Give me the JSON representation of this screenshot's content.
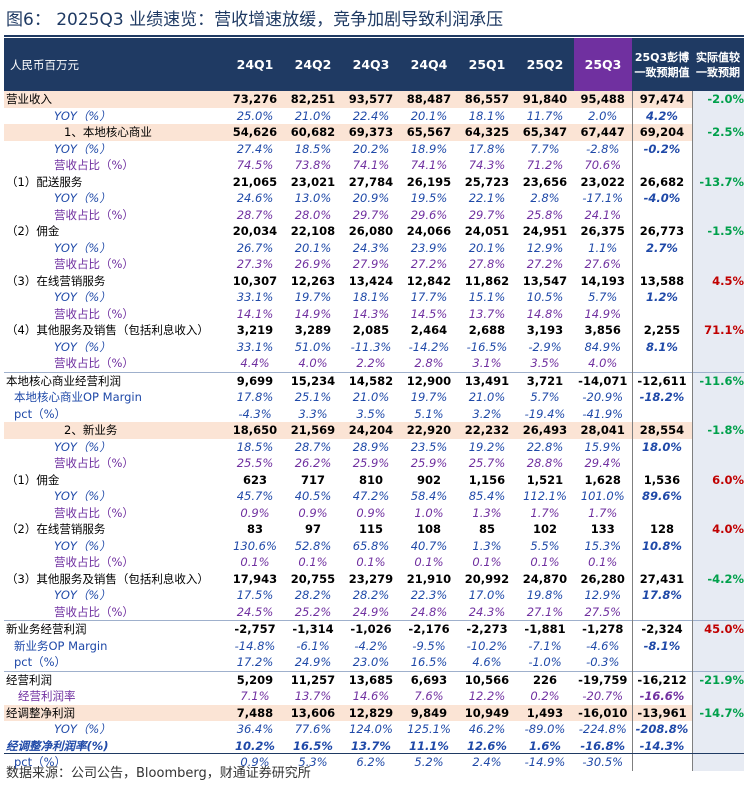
{
  "title": "图6： 2025Q3 业绩速览：营收增速放缓，竞争加剧导致利润承压",
  "header": {
    "label": "人民币百万元",
    "quarters": [
      "24Q1",
      "24Q2",
      "24Q3",
      "24Q4",
      "25Q1",
      "25Q2",
      "25Q3"
    ],
    "estimate": "25Q3彭博一致预期值",
    "actual_vs": "实际值较一致预期"
  },
  "colors": {
    "header_bg": "#1f3a63",
    "highlight_bg": "#7030a0",
    "band_bg": "#fbe4d5",
    "positive": "#00a04b",
    "negative": "#c00000"
  },
  "rows": [
    {
      "type": "main",
      "label": "营业收入",
      "vals": [
        "73,276",
        "82,251",
        "93,577",
        "88,487",
        "86,557",
        "91,840",
        "95,488"
      ],
      "est": "97,474",
      "chg": "-2.0%",
      "chg_color": "grn",
      "band": true
    },
    {
      "type": "yoy",
      "label": "YOY（%）",
      "vals": [
        "25.0%",
        "21.0%",
        "22.4%",
        "20.1%",
        "18.1%",
        "11.7%",
        "2.0%"
      ],
      "est": "4.2%",
      "chg": ""
    },
    {
      "type": "main",
      "label": "1、本地核心商业",
      "vals": [
        "54,626",
        "60,682",
        "69,373",
        "65,567",
        "64,325",
        "65,347",
        "67,447"
      ],
      "est": "69,204",
      "chg": "-2.5%",
      "chg_color": "grn",
      "band": true,
      "indent": true
    },
    {
      "type": "yoy",
      "label": "YOY（%）",
      "vals": [
        "27.4%",
        "18.5%",
        "20.2%",
        "18.9%",
        "17.8%",
        "7.7%",
        "-2.8%"
      ],
      "est": "-0.2%",
      "chg": ""
    },
    {
      "type": "share",
      "label": "营收占比（%）",
      "vals": [
        "74.5%",
        "73.8%",
        "74.1%",
        "74.1%",
        "74.3%",
        "71.2%",
        "70.6%"
      ],
      "est": "",
      "chg": ""
    },
    {
      "type": "main",
      "label": "（1）配送服务",
      "vals": [
        "21,065",
        "23,021",
        "27,784",
        "26,195",
        "25,723",
        "23,656",
        "23,022"
      ],
      "est": "26,682",
      "chg": "-13.7%",
      "chg_color": "grn"
    },
    {
      "type": "yoy",
      "label": "YOY（%）",
      "vals": [
        "24.6%",
        "13.0%",
        "20.9%",
        "19.5%",
        "22.1%",
        "2.8%",
        "-17.1%"
      ],
      "est": "-4.0%",
      "chg": ""
    },
    {
      "type": "share",
      "label": "营收占比（%）",
      "vals": [
        "28.7%",
        "28.0%",
        "29.7%",
        "29.6%",
        "29.7%",
        "25.8%",
        "24.1%"
      ],
      "est": "",
      "chg": ""
    },
    {
      "type": "main",
      "label": "（2）佣金",
      "vals": [
        "20,034",
        "22,108",
        "26,080",
        "24,066",
        "24,051",
        "24,951",
        "26,375"
      ],
      "est": "26,773",
      "chg": "-1.5%",
      "chg_color": "grn"
    },
    {
      "type": "yoy",
      "label": "YOY（%）",
      "vals": [
        "26.7%",
        "20.1%",
        "24.3%",
        "23.9%",
        "20.1%",
        "12.9%",
        "1.1%"
      ],
      "est": "2.7%",
      "chg": ""
    },
    {
      "type": "share",
      "label": "营收占比（%）",
      "vals": [
        "27.3%",
        "26.9%",
        "27.9%",
        "27.2%",
        "27.8%",
        "27.2%",
        "27.6%"
      ],
      "est": "",
      "chg": ""
    },
    {
      "type": "main",
      "label": "（3）在线营销服务",
      "vals": [
        "10,307",
        "12,263",
        "13,424",
        "12,842",
        "11,862",
        "13,547",
        "14,193"
      ],
      "est": "13,588",
      "chg": "4.5%",
      "chg_color": "red"
    },
    {
      "type": "yoy",
      "label": "YOY（%）",
      "vals": [
        "33.1%",
        "19.7%",
        "18.1%",
        "17.7%",
        "15.1%",
        "10.5%",
        "5.7%"
      ],
      "est": "1.2%",
      "chg": ""
    },
    {
      "type": "share",
      "label": "营收占比（%）",
      "vals": [
        "14.1%",
        "14.9%",
        "14.3%",
        "14.5%",
        "13.7%",
        "14.8%",
        "14.9%"
      ],
      "est": "",
      "chg": ""
    },
    {
      "type": "main",
      "label": "（4）其他服务及销售（包括利息收入）",
      "vals": [
        "3,219",
        "3,289",
        "2,085",
        "2,464",
        "2,688",
        "3,193",
        "3,856"
      ],
      "est": "2,255",
      "chg": "71.1%",
      "chg_color": "red"
    },
    {
      "type": "yoy",
      "label": "YOY（%）",
      "vals": [
        "33.1%",
        "51.0%",
        "-11.3%",
        "-14.2%",
        "-16.5%",
        "-2.9%",
        "84.9%"
      ],
      "est": "8.1%",
      "chg": ""
    },
    {
      "type": "share",
      "label": "营收占比（%）",
      "vals": [
        "4.4%",
        "4.0%",
        "2.2%",
        "2.8%",
        "3.1%",
        "3.5%",
        "4.0%"
      ],
      "est": "",
      "chg": ""
    },
    {
      "type": "main",
      "label": "本地核心商业经营利润",
      "vals": [
        "9,699",
        "15,234",
        "14,582",
        "12,900",
        "13,491",
        "3,721",
        "-14,071"
      ],
      "est": "-12,611",
      "chg": "-11.6%",
      "chg_color": "grn",
      "sep": true
    },
    {
      "type": "opm",
      "label": "本地核心商业OP Margin",
      "vals": [
        "17.8%",
        "25.1%",
        "21.0%",
        "19.7%",
        "21.0%",
        "5.7%",
        "-20.9%"
      ],
      "est": "-18.2%",
      "chg": ""
    },
    {
      "type": "pct",
      "label": "pct（%）",
      "vals": [
        "-4.3%",
        "3.3%",
        "3.5%",
        "5.1%",
        "3.2%",
        "-19.4%",
        "-41.9%"
      ],
      "est": "",
      "chg": ""
    },
    {
      "type": "main",
      "label": "2、新业务",
      "vals": [
        "18,650",
        "21,569",
        "24,204",
        "22,920",
        "22,232",
        "26,493",
        "28,041"
      ],
      "est": "28,554",
      "chg": "-1.8%",
      "chg_color": "grn",
      "band": true,
      "indent": true
    },
    {
      "type": "yoy",
      "label": "YOY（%）",
      "vals": [
        "18.5%",
        "28.7%",
        "28.9%",
        "23.5%",
        "19.2%",
        "22.8%",
        "15.9%"
      ],
      "est": "18.0%",
      "chg": ""
    },
    {
      "type": "share",
      "label": "营收占比（%）",
      "vals": [
        "25.5%",
        "26.2%",
        "25.9%",
        "25.9%",
        "25.7%",
        "28.8%",
        "29.4%"
      ],
      "est": "",
      "chg": ""
    },
    {
      "type": "main",
      "label": "（1）佣金",
      "vals": [
        "623",
        "717",
        "810",
        "902",
        "1,156",
        "1,521",
        "1,628"
      ],
      "est": "1,536",
      "chg": "6.0%",
      "chg_color": "red"
    },
    {
      "type": "yoy",
      "label": "YOY（%）",
      "vals": [
        "45.7%",
        "40.5%",
        "47.2%",
        "58.4%",
        "85.4%",
        "112.1%",
        "101.0%"
      ],
      "est": "89.6%",
      "chg": ""
    },
    {
      "type": "share",
      "label": "营收占比（%）",
      "vals": [
        "0.9%",
        "0.9%",
        "0.9%",
        "1.0%",
        "1.3%",
        "1.7%",
        "1.7%"
      ],
      "est": "",
      "chg": ""
    },
    {
      "type": "main",
      "label": "（2）在线营销服务",
      "vals": [
        "83",
        "97",
        "115",
        "108",
        "85",
        "102",
        "133"
      ],
      "est": "128",
      "chg": "4.0%",
      "chg_color": "red"
    },
    {
      "type": "yoy",
      "label": "YOY（%）",
      "vals": [
        "130.6%",
        "52.8%",
        "65.8%",
        "40.7%",
        "1.3%",
        "5.5%",
        "15.3%"
      ],
      "est": "10.8%",
      "chg": ""
    },
    {
      "type": "share",
      "label": "营收占比（%）",
      "vals": [
        "0.1%",
        "0.1%",
        "0.1%",
        "0.1%",
        "0.1%",
        "0.1%",
        "0.1%"
      ],
      "est": "",
      "chg": ""
    },
    {
      "type": "main",
      "label": "（3）其他服务及销售（包括利息收入）",
      "vals": [
        "17,943",
        "20,755",
        "23,279",
        "21,910",
        "20,992",
        "24,870",
        "26,280"
      ],
      "est": "27,431",
      "chg": "-4.2%",
      "chg_color": "grn"
    },
    {
      "type": "yoy",
      "label": "YOY（%）",
      "vals": [
        "17.5%",
        "28.2%",
        "28.2%",
        "22.3%",
        "17.0%",
        "19.8%",
        "12.9%"
      ],
      "est": "17.8%",
      "chg": ""
    },
    {
      "type": "share",
      "label": "营收占比（%）",
      "vals": [
        "24.5%",
        "25.2%",
        "24.9%",
        "24.8%",
        "24.3%",
        "27.1%",
        "27.5%"
      ],
      "est": "",
      "chg": ""
    },
    {
      "type": "main",
      "label": "新业务经营利润",
      "vals": [
        "-2,757",
        "-1,314",
        "-1,026",
        "-2,176",
        "-2,273",
        "-1,881",
        "-1,278"
      ],
      "est": "-2,324",
      "chg": "45.0%",
      "chg_color": "red",
      "sep": true
    },
    {
      "type": "opm",
      "label": "新业务OP Margin",
      "vals": [
        "-14.8%",
        "-6.1%",
        "-4.2%",
        "-9.5%",
        "-10.2%",
        "-7.1%",
        "-4.6%"
      ],
      "est": "-8.1%",
      "chg": ""
    },
    {
      "type": "pct",
      "label": "pct（%）",
      "vals": [
        "17.2%",
        "24.9%",
        "23.0%",
        "16.5%",
        "4.6%",
        "-1.0%",
        "-0.3%"
      ],
      "est": "",
      "chg": ""
    },
    {
      "type": "main",
      "label": "经营利润",
      "vals": [
        "5,209",
        "11,257",
        "13,685",
        "6,693",
        "10,566",
        "226",
        "-19,759"
      ],
      "est": "-16,212",
      "chg": "-21.9%",
      "chg_color": "grn",
      "sep": true
    },
    {
      "type": "share",
      "label": "经营利润率",
      "vals": [
        "7.1%",
        "13.7%",
        "14.6%",
        "7.6%",
        "12.2%",
        "0.2%",
        "-20.7%"
      ],
      "est": "-16.6%",
      "chg": "",
      "lab_indent_small": true
    },
    {
      "type": "main",
      "label": "经调整净利润",
      "vals": [
        "7,488",
        "13,606",
        "12,829",
        "9,849",
        "10,949",
        "1,493",
        "-16,010"
      ],
      "est": "-13,961",
      "chg": "-14.7%",
      "chg_color": "grn",
      "band": true
    },
    {
      "type": "yoy",
      "label": "YOY（%）",
      "vals": [
        "36.4%",
        "77.6%",
        "124.0%",
        "125.1%",
        "46.2%",
        "-89.0%",
        "-224.8%"
      ],
      "est": "-208.8%",
      "chg": ""
    },
    {
      "type": "yoy",
      "label": "经调整净利润率(%)",
      "vals": [
        "10.2%",
        "16.5%",
        "13.7%",
        "11.1%",
        "12.6%",
        "1.6%",
        "-16.8%"
      ],
      "est": "-14.3%",
      "chg": "",
      "boldrate": true
    },
    {
      "type": "pct",
      "label": "pct（%）",
      "vals": [
        "0.9%",
        "5.3%",
        "6.2%",
        "5.2%",
        "2.4%",
        "-14.9%",
        "-30.5%"
      ],
      "est": "",
      "chg": ""
    }
  ],
  "footer": "数据来源：公司公告，Bloomberg，财通证券研究所"
}
